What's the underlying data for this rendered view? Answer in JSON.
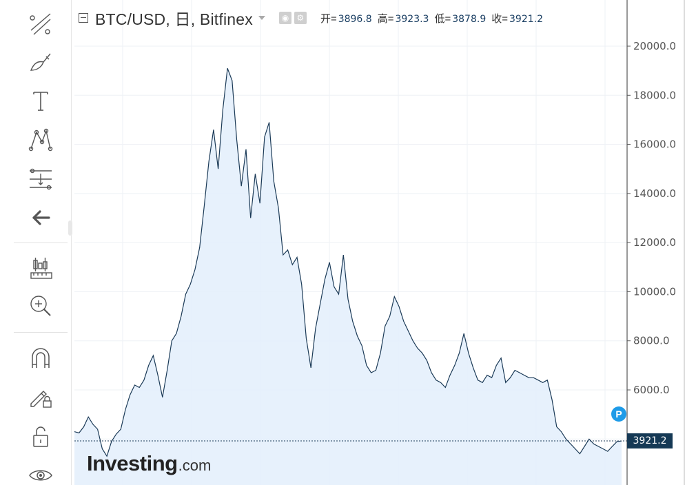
{
  "header": {
    "title": "BTC/USD, 日, Bitfinex",
    "ohlc": [
      {
        "label": "开=",
        "value": "3896.8"
      },
      {
        "label": "高=",
        "value": "3923.3"
      },
      {
        "label": "低=",
        "value": "3878.9"
      },
      {
        "label": "收=",
        "value": "3921.2"
      }
    ]
  },
  "toolbar": {
    "tools": [
      {
        "name": "trend-line-icon"
      },
      {
        "name": "brush-icon"
      },
      {
        "name": "text-tool-icon"
      },
      {
        "name": "pattern-icon"
      },
      {
        "name": "fib-retracement-icon"
      },
      {
        "name": "back-arrow-icon"
      },
      {
        "name": "measure-icon"
      },
      {
        "name": "zoom-in-icon"
      },
      {
        "name": "magnet-icon"
      },
      {
        "name": "lock-drawing-icon"
      },
      {
        "name": "unlock-icon"
      },
      {
        "name": "eye-icon"
      }
    ]
  },
  "price_tag": "3921.2",
  "badge": "P",
  "watermark": {
    "main": "Investing",
    "suffix": ".com"
  },
  "colors": {
    "line": "#1b3a57",
    "fill": "#e3eefb",
    "price_tag_bg": "#153955",
    "badge": "#1e9be8"
  },
  "chart_data": {
    "type": "area",
    "title": "BTC/USD, 日, Bitfinex",
    "xlabel": "",
    "ylabel": "",
    "ylim": [
      2000,
      21000
    ],
    "yticks": [
      20000,
      18000,
      16000,
      14000,
      12000,
      10000,
      8000,
      6000,
      4000
    ],
    "ytick_labels": [
      "20000.0",
      "18000.0",
      "16000.0",
      "14000.0",
      "12000.0",
      "10000.0",
      "8000.0",
      "6000.0"
    ],
    "grid": true,
    "last_value": 3921.2,
    "series": [
      {
        "values": [
          4300,
          4250,
          4500,
          4900,
          4600,
          4400,
          3600,
          3300,
          3900,
          4200,
          4400,
          5200,
          5800,
          6200,
          6100,
          6400,
          7000,
          7400,
          6600,
          5700,
          6800,
          8000,
          8300,
          9000,
          9900,
          10300,
          10900,
          11800,
          13500,
          15300,
          16600,
          15000,
          17400,
          19100,
          18600,
          16200,
          14300,
          15800,
          13000,
          14800,
          13600,
          16300,
          16900,
          14500,
          13400,
          11500,
          11700,
          11100,
          11400,
          10300,
          8100,
          6900,
          8500,
          9500,
          10500,
          11200,
          10200,
          9900,
          11500,
          9700,
          8800,
          8200,
          7800,
          7000,
          6700,
          6800,
          7500,
          8600,
          9000,
          9800,
          9400,
          8800,
          8400,
          8000,
          7700,
          7500,
          7200,
          6700,
          6400,
          6300,
          6100,
          6600,
          7000,
          7500,
          8300,
          7500,
          6900,
          6400,
          6300,
          6600,
          6500,
          7000,
          7300,
          6300,
          6500,
          6800,
          6700,
          6600,
          6500,
          6500,
          6400,
          6300,
          6400,
          5600,
          4500,
          4300,
          4000,
          3800,
          3600,
          3400,
          3700,
          4000,
          3800,
          3700,
          3600,
          3500,
          3700,
          3900,
          3921.2
        ]
      }
    ]
  }
}
